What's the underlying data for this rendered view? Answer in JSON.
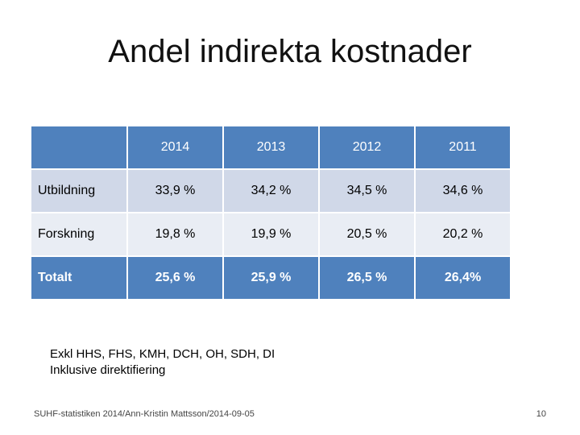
{
  "slide": {
    "title": "Andel indirekta kostnader",
    "table": {
      "corner": "",
      "years": [
        "2014",
        "2013",
        "2012",
        "2011"
      ],
      "rows": [
        {
          "label": "Utbildning",
          "values": [
            "33,9 %",
            "34,2 %",
            "34,5 %",
            "34,6 %"
          ]
        },
        {
          "label": "Forskning",
          "values": [
            "19,8 %",
            "19,9 %",
            "20,5 %",
            "20,2 %"
          ]
        },
        {
          "label": "Totalt",
          "values": [
            "25,6 %",
            "25,9 %",
            "26,5 %",
            "26,4%"
          ]
        }
      ]
    },
    "notes": [
      "Exkl HHS, FHS, KMH, DCH, OH, SDH, DI",
      "Inklusive direktifiering"
    ],
    "footer": "SUHF-statistiken 2014/Ann-Kristin Mattsson/2014-09-05",
    "page_number": "10"
  },
  "colors": {
    "header_blue": "#4f81bd",
    "row_light": "#d0d8e8",
    "row_lighter": "#e9edf4"
  }
}
